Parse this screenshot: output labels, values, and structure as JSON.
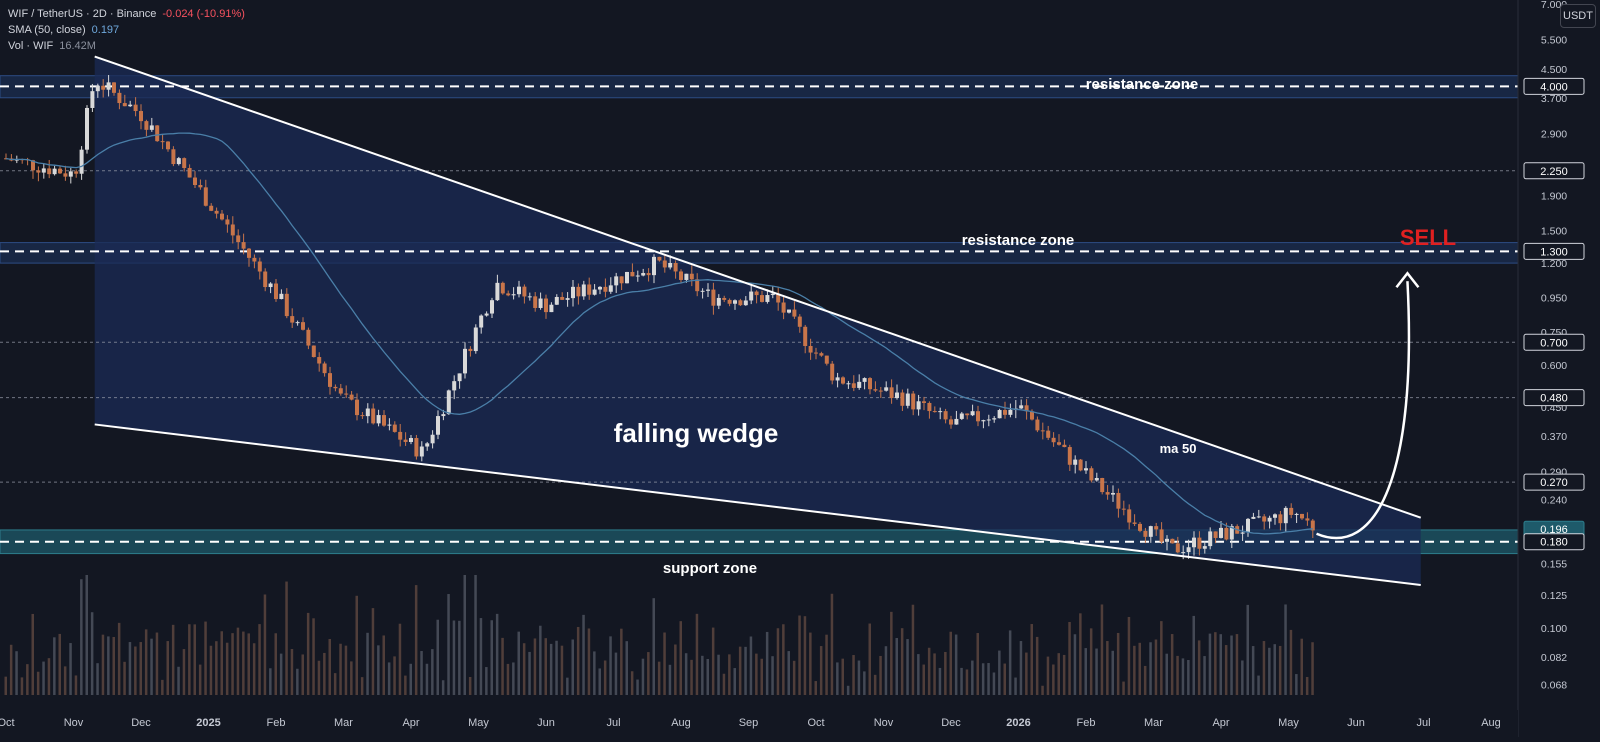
{
  "legend": {
    "symbol": "WIF / TetherUS · 2D · Binance",
    "change": "-0.024 (-10.91%)",
    "sma_label": "SMA (50, close)",
    "sma_value": "0.197",
    "vol_label": "Vol · WIF",
    "vol_value": "16.42M"
  },
  "quote_currency": "USDT",
  "colors": {
    "background": "#131722",
    "up": "#d9d9d9",
    "down": "#c8754a",
    "sma": "#4a7fa8",
    "wedge_fill": "#1b2b55",
    "zone_fill": "#1e3560",
    "support_fill": "#1e5a6a",
    "annotation": "#ffffff",
    "sell": "#e02020"
  },
  "annotations": {
    "resistance_top": "resistance zone",
    "resistance_mid": "resistance zone",
    "pattern": "falling wedge",
    "ma": "ma 50",
    "support": "support zone",
    "signal": "SELL"
  },
  "chart_data": {
    "type": "candlestick",
    "timeframe": "2D",
    "y_scale": "log",
    "ylim": [
      0.058,
      7.2
    ],
    "y_ticks": [
      0.068,
      0.082,
      0.1,
      0.125,
      0.155,
      0.24,
      0.29,
      0.37,
      0.45,
      0.6,
      0.75,
      0.95,
      1.2,
      1.5,
      1.9,
      2.9,
      3.7,
      4.5,
      5.5,
      7.0
    ],
    "y_tick_labels": [
      "0.068",
      "0.082",
      "0.100",
      "0.125",
      "0.155",
      "0.240",
      "0.290",
      "0.370",
      "0.450",
      "0.600",
      "0.750",
      "0.950",
      "1.200",
      "1.500",
      "1.900",
      "2.900",
      "3.700",
      "4.500",
      "5.500",
      "7.000"
    ],
    "x_labels": [
      "Oct",
      "Nov",
      "Dec",
      "2025",
      "Feb",
      "Mar",
      "Apr",
      "May",
      "Jun",
      "Jul",
      "Aug",
      "Sep",
      "Oct",
      "Nov",
      "Dec",
      "2026",
      "Feb",
      "Mar",
      "Apr",
      "May",
      "Jun",
      "Jul",
      "Aug"
    ],
    "x_label_month_index": [
      0,
      1,
      2,
      3,
      4,
      5,
      6,
      7,
      8,
      9,
      10,
      11,
      12,
      13,
      14,
      15,
      16,
      17,
      18,
      19,
      20,
      21,
      22
    ],
    "x_start": "2024-10",
    "price_tags": [
      {
        "value": 4.0,
        "label": "4.000",
        "style": "boxed"
      },
      {
        "value": 2.25,
        "label": "2.250",
        "style": "boxed"
      },
      {
        "value": 1.3,
        "label": "1.300",
        "style": "boxed"
      },
      {
        "value": 0.7,
        "label": "0.700",
        "style": "boxed"
      },
      {
        "value": 0.48,
        "label": "0.480",
        "style": "boxed"
      },
      {
        "value": 0.27,
        "label": "0.270",
        "style": "boxed"
      },
      {
        "value": 0.196,
        "label": "0.196",
        "style": "current"
      },
      {
        "value": 0.18,
        "label": "0.180",
        "style": "boxed"
      }
    ],
    "dotted_levels": [
      2.25,
      0.7,
      0.48,
      0.27
    ],
    "dashed_levels": [
      4.0,
      1.3,
      0.18
    ],
    "zones": [
      {
        "name": "resistance zone",
        "low": 3.7,
        "high": 4.3
      },
      {
        "name": "resistance zone",
        "low": 1.2,
        "high": 1.38
      },
      {
        "name": "support zone",
        "low": 0.166,
        "high": 0.195
      }
    ],
    "wedge": {
      "upper": [
        [
          "2024-11-10",
          4.9
        ],
        [
          "2026-07-01",
          0.212
        ]
      ],
      "lower": [
        [
          "2024-11-10",
          0.4
        ],
        [
          "2026-07-01",
          0.134
        ]
      ]
    },
    "projection": {
      "from": [
        "2026-05-15",
        0.19
      ],
      "to": [
        "2026-06-25",
        1.12
      ]
    },
    "last_close": 0.196,
    "sma50_last": 0.197,
    "volume_last": "16.42M",
    "key_closes": [
      {
        "date": "2024-10-01",
        "price": 2.45
      },
      {
        "date": "2024-11-01",
        "price": 2.2
      },
      {
        "date": "2024-11-10",
        "price": 4.2
      },
      {
        "date": "2024-12-01",
        "price": 3.3
      },
      {
        "date": "2025-01-01",
        "price": 1.8
      },
      {
        "date": "2025-02-01",
        "price": 0.95
      },
      {
        "date": "2025-03-01",
        "price": 0.48
      },
      {
        "date": "2025-04-07",
        "price": 0.33
      },
      {
        "date": "2025-05-10",
        "price": 1.05
      },
      {
        "date": "2025-06-01",
        "price": 0.9
      },
      {
        "date": "2025-07-22",
        "price": 1.2
      },
      {
        "date": "2025-08-15",
        "price": 0.95
      },
      {
        "date": "2025-09-12",
        "price": 0.95
      },
      {
        "date": "2025-10-10",
        "price": 0.55
      },
      {
        "date": "2025-11-10",
        "price": 0.48
      },
      {
        "date": "2025-12-01",
        "price": 0.4
      },
      {
        "date": "2026-01-01",
        "price": 0.45
      },
      {
        "date": "2026-02-01",
        "price": 0.28
      },
      {
        "date": "2026-03-10",
        "price": 0.17
      },
      {
        "date": "2026-04-15",
        "price": 0.2
      },
      {
        "date": "2026-05-05",
        "price": 0.22
      },
      {
        "date": "2026-05-15",
        "price": 0.196
      }
    ]
  }
}
